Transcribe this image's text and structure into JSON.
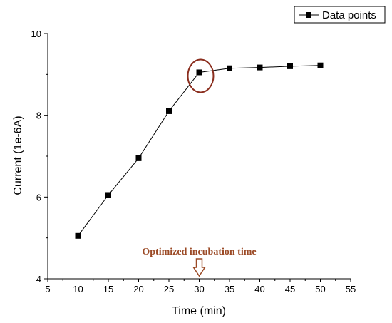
{
  "chart_data": {
    "type": "line",
    "xlabel": "Time (min)",
    "ylabel": "Current (1e-6A)",
    "xlim": [
      5,
      55
    ],
    "ylim": [
      4,
      10
    ],
    "x_ticks": [
      "5",
      "10",
      "15",
      "20",
      "25",
      "30",
      "35",
      "40",
      "45",
      "50",
      "55"
    ],
    "y_ticks": [
      "4",
      "6",
      "8",
      "10"
    ],
    "series": [
      {
        "name": "Data points",
        "x": [
          10,
          15,
          20,
          25,
          30,
          35,
          40,
          45,
          50
        ],
        "y": [
          5.05,
          6.05,
          6.95,
          8.1,
          9.05,
          9.15,
          9.17,
          9.2,
          9.22
        ]
      }
    ],
    "legend": {
      "position": "top-right",
      "marker": "square"
    },
    "annotations": [
      {
        "text": "Optimized incubation time",
        "x": 30
      }
    ],
    "highlight": {
      "x": 30,
      "y": 9.05,
      "shape": "ellipse"
    },
    "colors": {
      "series": "#000000",
      "annotation": "#9b4a26",
      "highlight": "#8b2e1e"
    },
    "grid": false
  }
}
